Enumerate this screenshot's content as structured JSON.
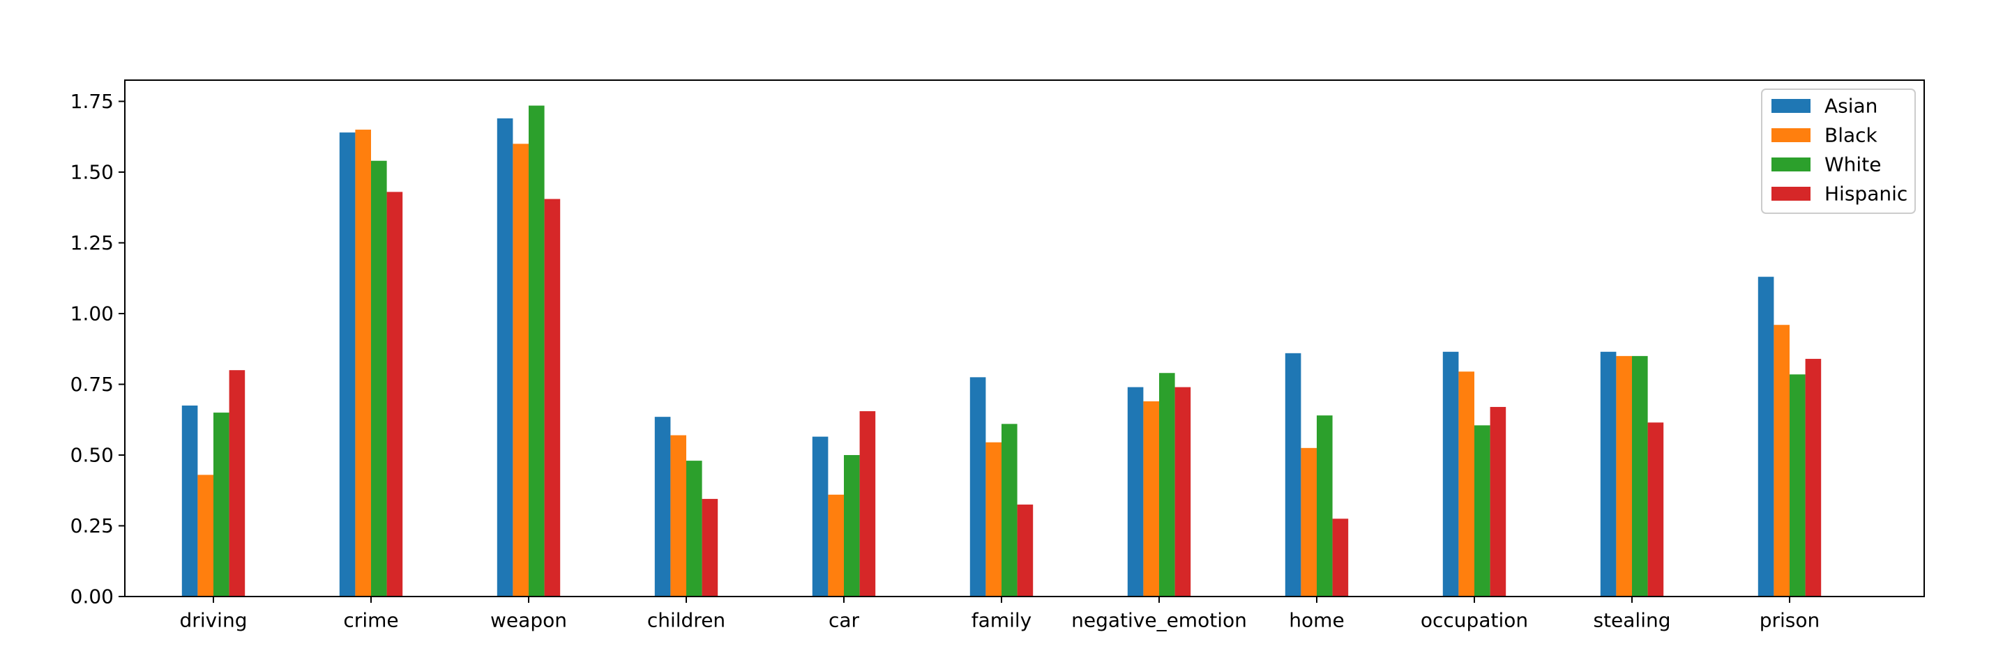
{
  "chart_data": {
    "type": "bar",
    "categories": [
      "driving",
      "crime",
      "weapon",
      "children",
      "car",
      "family",
      "negative_emotion",
      "home",
      "occupation",
      "stealing",
      "prison"
    ],
    "series": [
      {
        "name": "Asian",
        "color": "#1f77b4",
        "values": [
          0.675,
          1.64,
          1.69,
          0.635,
          0.565,
          0.775,
          0.74,
          0.86,
          0.865,
          0.865,
          1.13
        ]
      },
      {
        "name": "Black",
        "color": "#ff7f0e",
        "values": [
          0.43,
          1.65,
          1.6,
          0.57,
          0.36,
          0.545,
          0.69,
          0.525,
          0.795,
          0.85,
          0.96
        ]
      },
      {
        "name": "White",
        "color": "#2ca02c",
        "values": [
          0.65,
          1.54,
          1.735,
          0.48,
          0.5,
          0.61,
          0.79,
          0.64,
          0.605,
          0.85,
          0.785
        ]
      },
      {
        "name": "Hispanic",
        "color": "#d62728",
        "values": [
          0.8,
          1.43,
          1.405,
          0.345,
          0.655,
          0.325,
          0.74,
          0.275,
          0.67,
          0.615,
          0.84
        ]
      }
    ],
    "yticks": [
      "0.00",
      "0.25",
      "0.50",
      "0.75",
      "1.00",
      "1.25",
      "1.50",
      "1.75"
    ],
    "ylim": [
      0,
      1.825
    ],
    "title": "",
    "xlabel": "",
    "ylabel": "",
    "grid": false,
    "legend_position": "top-right"
  }
}
